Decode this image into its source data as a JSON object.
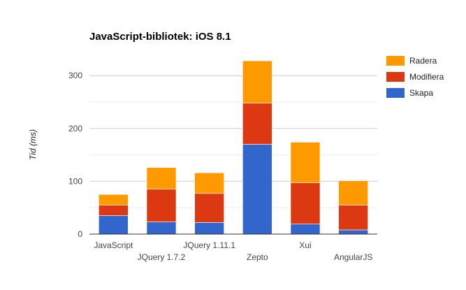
{
  "chart_data": {
    "type": "bar",
    "stacked": true,
    "title": "JavaScript-bibliotek: iOS 8.1",
    "xlabel": "",
    "ylabel": "Tid (ms)",
    "ylim": [
      0,
      340
    ],
    "yticks": [
      0,
      100,
      200,
      300
    ],
    "grid": true,
    "legend": "right",
    "categories": [
      "JavaScript",
      "JQuery 1.7.2",
      "JQuery 1.11.1",
      "Zepto",
      "Xui",
      "AngularJS"
    ],
    "series": [
      {
        "name": "Skapa",
        "color": "#3366cc",
        "values": [
          35,
          23,
          22,
          170,
          19,
          8
        ]
      },
      {
        "name": "Modifiera",
        "color": "#dc3912",
        "values": [
          20,
          62,
          55,
          78,
          78,
          47
        ]
      },
      {
        "name": "Radera",
        "color": "#ff9900",
        "values": [
          20,
          41,
          39,
          80,
          77,
          46
        ]
      }
    ]
  }
}
